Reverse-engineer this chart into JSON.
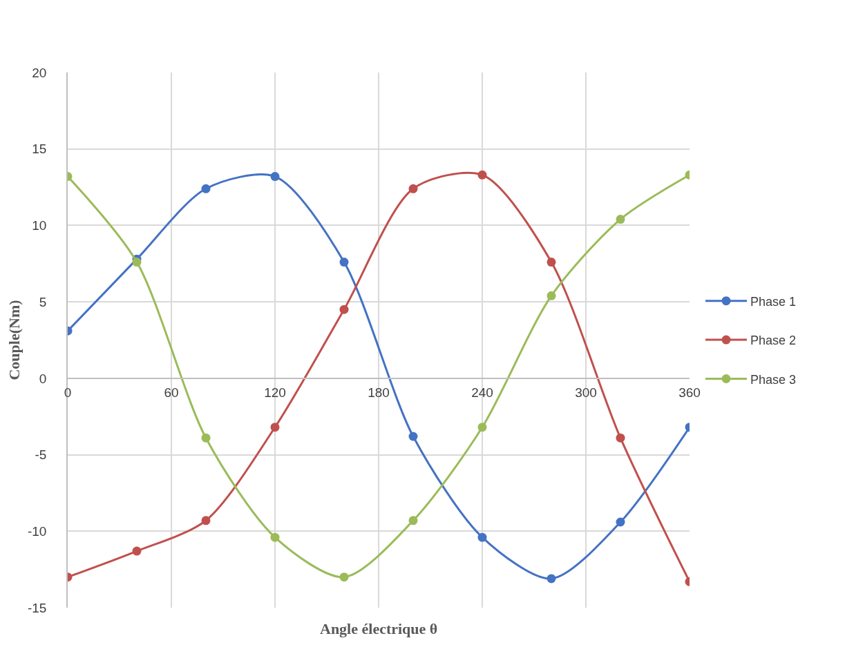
{
  "chart_data": {
    "type": "line",
    "xlabel": "Angle électrique θ",
    "ylabel": "Couple(Nm)",
    "x": [
      0,
      40,
      80,
      120,
      160,
      200,
      240,
      280,
      320,
      360
    ],
    "series": [
      {
        "name": "Phase 1",
        "color": "#4472c4",
        "values": [
          3.1,
          7.8,
          12.4,
          13.2,
          7.6,
          -3.8,
          -10.4,
          -13.1,
          -9.4,
          -3.2
        ]
      },
      {
        "name": "Phase 2",
        "color": "#c0504d",
        "values": [
          -13.0,
          -11.3,
          -9.3,
          -3.2,
          4.5,
          12.4,
          13.3,
          7.6,
          -3.9,
          -13.3
        ]
      },
      {
        "name": "Phase 3",
        "color": "#9bbb59",
        "values": [
          13.2,
          7.6,
          -3.9,
          -10.4,
          -13.0,
          -9.3,
          -3.2,
          5.4,
          10.4,
          13.3
        ]
      }
    ],
    "xlim": [
      0,
      360
    ],
    "xticks": [
      0,
      60,
      120,
      180,
      240,
      300,
      360
    ],
    "ylim": [
      -15,
      20
    ],
    "yticks": [
      -15,
      -10,
      -5,
      0,
      5,
      10,
      15,
      20
    ],
    "grid": true,
    "legend": "right",
    "marker": "circle",
    "line_style": "solid"
  }
}
